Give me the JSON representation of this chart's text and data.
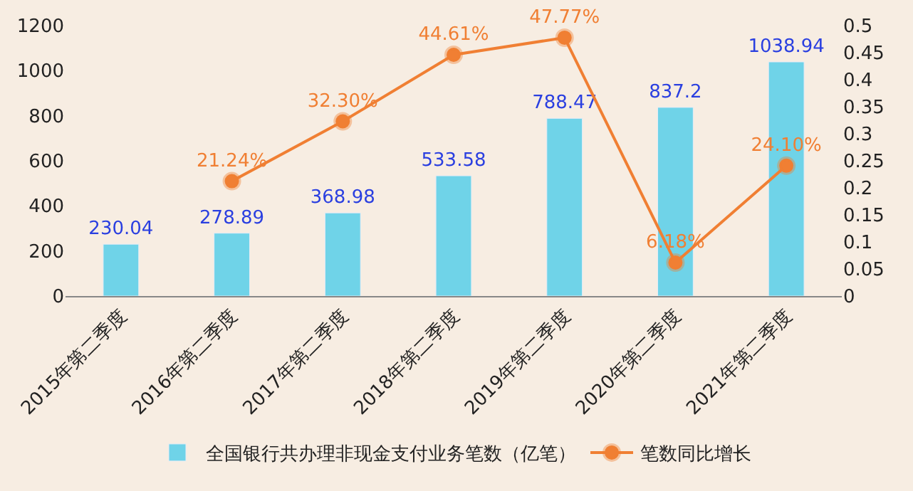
{
  "chart_data": {
    "type": "bar",
    "categories": [
      "2015年第二季度",
      "2016年第二季度",
      "2017年第二季度",
      "2018年第二季度",
      "2019年第二季度",
      "2020年第二季度",
      "2021年第二季度"
    ],
    "series": [
      {
        "name": "全国银行共办理非现金支付业务笔数（亿笔）",
        "color": "#6fd3e8",
        "values": [
          230.04,
          278.89,
          368.98,
          533.58,
          788.47,
          837.2,
          1038.94
        ],
        "value_labels": [
          "230.04",
          "278.89",
          "368.98",
          "533.58",
          "788.47",
          "837.2",
          "1038.94"
        ]
      },
      {
        "name": "笔数同比增长",
        "type": "line",
        "axis": "y2",
        "color": "#f07f33",
        "values": [
          null,
          0.2124,
          0.323,
          0.4461,
          0.4777,
          0.0618,
          0.241
        ],
        "value_labels": [
          null,
          "21.24%",
          "32.30%",
          "44.61%",
          "47.77%",
          "6.18%",
          "24.10%"
        ]
      }
    ],
    "ylim": [
      0,
      1200
    ],
    "yticks": [
      0,
      200,
      400,
      600,
      800,
      1000,
      1200
    ],
    "y2lim": [
      0,
      0.5
    ],
    "y2ticks": [
      0,
      0.05,
      0.1,
      0.15,
      0.2,
      0.25,
      0.3,
      0.35,
      0.4,
      0.45,
      0.5
    ],
    "grid": false,
    "legend": "bottom",
    "marker": "circle",
    "line_style": "solid"
  }
}
